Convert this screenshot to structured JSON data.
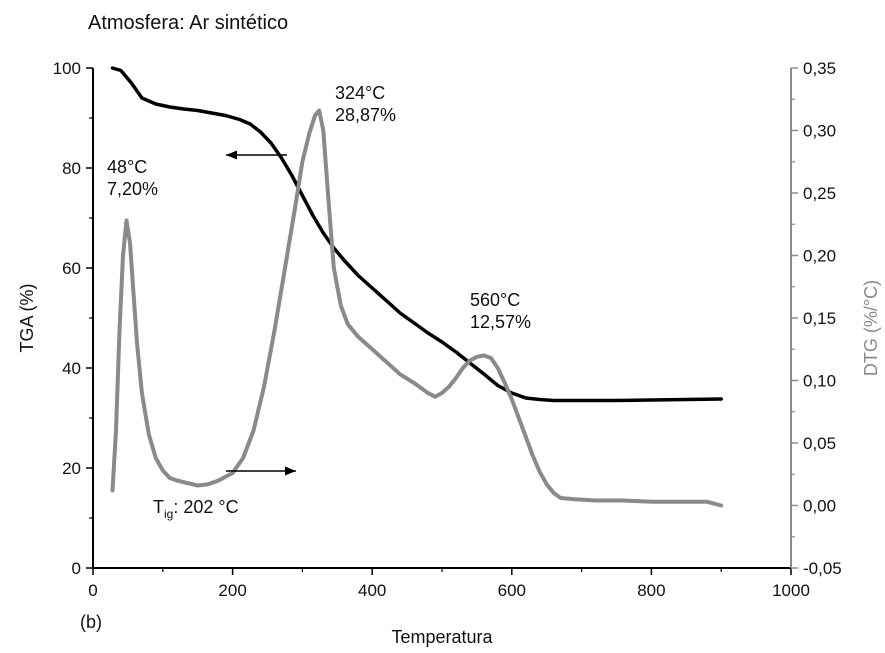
{
  "chart_data": {
    "type": "line",
    "title": "Atmosfera: Ar sintético",
    "panel_label": "(b)",
    "xlabel": "Temperatura",
    "ylabel_left": "TGA (%)",
    "ylabel_right": "DTG (%/°C)",
    "xlim": [
      0,
      1000
    ],
    "ylim_left": [
      0,
      100
    ],
    "ylim_right": [
      -0.05,
      0.35
    ],
    "x_ticks": [
      "0",
      "200",
      "400",
      "600",
      "800",
      "1000"
    ],
    "y_ticks_left": [
      "0",
      "20",
      "40",
      "60",
      "80",
      "100"
    ],
    "y_ticks_right": [
      "-0,05",
      "0,00",
      "0,05",
      "0,10",
      "0,15",
      "0,20",
      "0,25",
      "0,30",
      "0,35"
    ],
    "colors": {
      "tga": "#000000",
      "dtg": "#8a8a8a",
      "right_axis": "#8a8a8a"
    },
    "series": [
      {
        "axis": "left",
        "color": "#000000",
        "x": [
          28,
          40,
          55,
          70,
          90,
          110,
          130,
          150,
          170,
          190,
          210,
          225,
          240,
          255,
          270,
          285,
          300,
          315,
          330,
          345,
          360,
          380,
          400,
          420,
          440,
          460,
          480,
          500,
          520,
          540,
          560,
          580,
          600,
          620,
          640,
          660,
          700,
          750,
          800,
          850,
          900
        ],
        "y": [
          100,
          99.5,
          97,
          94,
          92.8,
          92.2,
          91.8,
          91.5,
          91,
          90.5,
          89.7,
          88.8,
          87.2,
          85,
          82,
          78.5,
          74.5,
          70.5,
          67,
          64,
          61.5,
          58.5,
          56,
          53.5,
          51,
          49,
          47,
          45.2,
          43.2,
          41,
          38.8,
          36.5,
          35,
          34,
          33.7,
          33.5,
          33.5,
          33.5,
          33.6,
          33.7,
          33.8
        ]
      },
      {
        "axis": "right",
        "color": "#8a8a8a",
        "x": [
          28,
          33,
          38,
          43,
          48,
          53,
          58,
          63,
          70,
          80,
          90,
          100,
          110,
          120,
          135,
          150,
          165,
          180,
          200,
          215,
          230,
          245,
          260,
          275,
          290,
          300,
          310,
          318,
          324,
          330,
          338,
          345,
          355,
          365,
          380,
          400,
          420,
          440,
          460,
          480,
          490,
          500,
          510,
          520,
          530,
          540,
          550,
          560,
          570,
          580,
          590,
          600,
          610,
          620,
          630,
          640,
          650,
          660,
          670,
          690,
          720,
          760,
          800,
          840,
          880,
          900
        ],
        "y": [
          0.012,
          0.06,
          0.14,
          0.2,
          0.228,
          0.21,
          0.17,
          0.13,
          0.09,
          0.057,
          0.038,
          0.028,
          0.022,
          0.02,
          0.018,
          0.016,
          0.017,
          0.02,
          0.026,
          0.038,
          0.06,
          0.095,
          0.14,
          0.19,
          0.24,
          0.275,
          0.298,
          0.312,
          0.316,
          0.3,
          0.24,
          0.19,
          0.16,
          0.145,
          0.135,
          0.125,
          0.115,
          0.105,
          0.098,
          0.09,
          0.087,
          0.09,
          0.095,
          0.102,
          0.11,
          0.116,
          0.119,
          0.12,
          0.118,
          0.11,
          0.098,
          0.085,
          0.07,
          0.055,
          0.04,
          0.027,
          0.017,
          0.01,
          0.006,
          0.005,
          0.004,
          0.004,
          0.003,
          0.003,
          0.003,
          0.0
        ]
      }
    ],
    "annotations": [
      {
        "line1": "48°C",
        "line2": "7,20%"
      },
      {
        "line1": "324°C",
        "line2": "28,87%"
      },
      {
        "line1": "560°C",
        "line2": "12,57%"
      }
    ],
    "tig_label": {
      "main": "T",
      "sub": "ig",
      "rest": ": 202 °C"
    },
    "grid": false
  }
}
